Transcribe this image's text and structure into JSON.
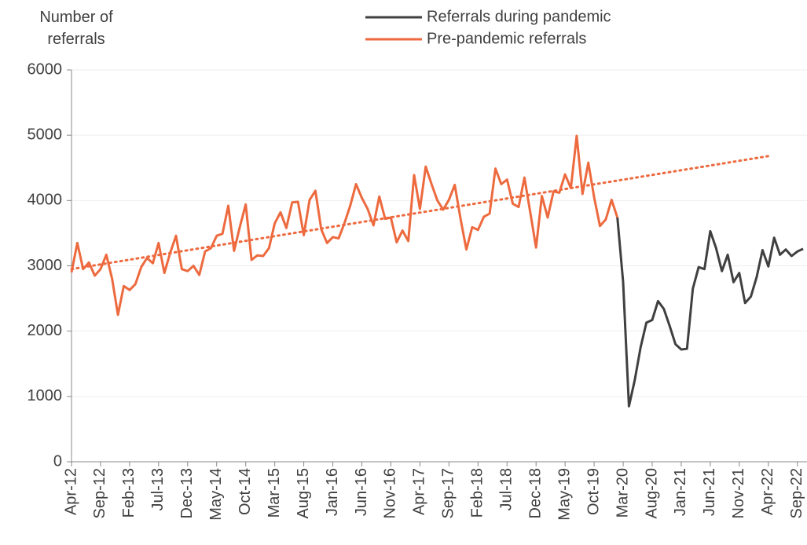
{
  "chart_data": {
    "type": "line",
    "y_label": "Number of referrals",
    "categories": [
      "Apr-12",
      null,
      null,
      null,
      null,
      "Sep-12",
      null,
      null,
      null,
      null,
      "Feb-13",
      null,
      null,
      null,
      null,
      "Jul-13",
      null,
      null,
      null,
      null,
      "Dec-13",
      null,
      null,
      null,
      null,
      "May-14",
      null,
      null,
      null,
      null,
      "Oct-14",
      null,
      null,
      null,
      null,
      "Mar-15",
      null,
      null,
      null,
      null,
      "Aug-15",
      null,
      null,
      null,
      null,
      "Jan-16",
      null,
      null,
      null,
      null,
      "Jun-16",
      null,
      null,
      null,
      null,
      "Nov-16",
      null,
      null,
      null,
      null,
      "Apr-17",
      null,
      null,
      null,
      null,
      "Sep-17",
      null,
      null,
      null,
      null,
      "Feb-18",
      null,
      null,
      null,
      null,
      "Jul-18",
      null,
      null,
      null,
      null,
      "Dec-18",
      null,
      null,
      null,
      null,
      "May-19",
      null,
      null,
      null,
      null,
      "Oct-19",
      null,
      null,
      null,
      null,
      "Mar-20",
      null,
      null,
      null,
      null,
      "Aug-20",
      null,
      null,
      null,
      null,
      "Jan-21",
      null,
      null,
      null,
      null,
      "Jun-21",
      null,
      null,
      null,
      null,
      "Nov-21",
      null,
      null,
      null,
      null,
      "Apr-22",
      null,
      null,
      null,
      null,
      "Sep-22",
      null
    ],
    "series": [
      {
        "name": "Referrals during pandemic",
        "color": "#404040",
        "values": [
          null,
          null,
          null,
          null,
          null,
          null,
          null,
          null,
          null,
          null,
          null,
          null,
          null,
          null,
          null,
          null,
          null,
          null,
          null,
          null,
          null,
          null,
          null,
          null,
          null,
          null,
          null,
          null,
          null,
          null,
          null,
          null,
          null,
          null,
          null,
          null,
          null,
          null,
          null,
          null,
          null,
          null,
          null,
          null,
          null,
          null,
          null,
          null,
          null,
          null,
          null,
          null,
          null,
          null,
          null,
          null,
          null,
          null,
          null,
          null,
          null,
          null,
          null,
          null,
          null,
          null,
          null,
          null,
          null,
          null,
          null,
          null,
          null,
          null,
          null,
          null,
          null,
          null,
          null,
          null,
          null,
          null,
          null,
          null,
          null,
          null,
          null,
          null,
          null,
          null,
          null,
          null,
          null,
          null,
          3740,
          2750,
          850,
          1250,
          1750,
          2130,
          2170,
          2460,
          2340,
          2080,
          1800,
          1720,
          1730,
          2650,
          2980,
          2950,
          3530,
          3270,
          2920,
          3170,
          2750,
          2890,
          2430,
          2530,
          2830,
          3240,
          2990,
          3430,
          3170,
          3250,
          3150,
          3220,
          3260
        ]
      },
      {
        "name": "Pre-pandemic referrals",
        "color": "#ed6a3f",
        "values": [
          2900,
          3350,
          2950,
          3050,
          2850,
          2950,
          3170,
          2800,
          2250,
          2690,
          2630,
          2720,
          2980,
          3120,
          3040,
          3350,
          2890,
          3200,
          3460,
          2950,
          2920,
          3000,
          2860,
          3220,
          3270,
          3460,
          3490,
          3920,
          3230,
          3600,
          3940,
          3090,
          3160,
          3150,
          3270,
          3650,
          3820,
          3580,
          3970,
          3980,
          3470,
          4010,
          4150,
          3560,
          3350,
          3440,
          3420,
          3650,
          3920,
          4250,
          4040,
          3870,
          3620,
          4060,
          3720,
          3740,
          3360,
          3540,
          3380,
          4390,
          3870,
          4520,
          4250,
          4000,
          3860,
          4010,
          4240,
          3720,
          3250,
          3590,
          3550,
          3750,
          3800,
          4490,
          4250,
          4320,
          3950,
          3900,
          4350,
          3820,
          3280,
          4070,
          3740,
          4140,
          4120,
          4400,
          4190,
          4990,
          4100,
          4580,
          4050,
          3610,
          3710,
          4010,
          3740,
          null,
          null,
          null,
          null,
          null,
          null,
          null,
          null,
          null,
          null,
          null,
          null,
          null,
          null,
          null,
          null,
          null,
          null,
          null,
          null,
          null,
          null,
          null,
          null,
          null,
          null,
          null,
          null,
          null,
          null,
          null,
          null
        ]
      }
    ],
    "trendline": {
      "color": "#ed6a3f",
      "x_index": [
        0,
        120
      ],
      "values": [
        2950,
        4680
      ]
    },
    "ylim": [
      0,
      6000
    ],
    "yticks": [
      0,
      1000,
      2000,
      3000,
      4000,
      5000,
      6000
    ],
    "grid": true
  }
}
